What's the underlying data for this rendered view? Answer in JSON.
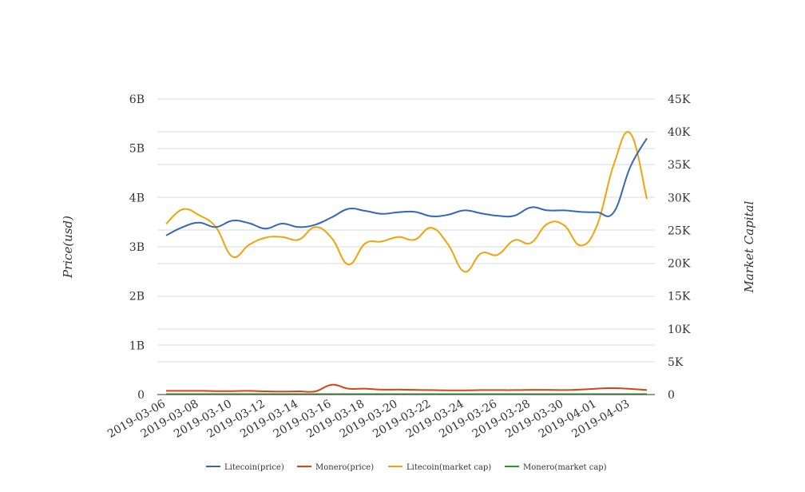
{
  "chart_data": {
    "type": "line",
    "title": "",
    "ylabel": "Price(usd)",
    "y2label": "Market Capital",
    "ylim": [
      0,
      6000000000
    ],
    "y2lim": [
      0,
      45000
    ],
    "yticks": [
      "0",
      "1B",
      "2B",
      "3B",
      "4B",
      "5B",
      "6B"
    ],
    "y2ticks": [
      "0",
      "5K",
      "10K",
      "15K",
      "20K",
      "25K",
      "30K",
      "35K",
      "40K",
      "45K"
    ],
    "grid": true,
    "legend_position": "bottom",
    "x": [
      "2019-03-06",
      "2019-03-07",
      "2019-03-08",
      "2019-03-09",
      "2019-03-10",
      "2019-03-11",
      "2019-03-12",
      "2019-03-13",
      "2019-03-14",
      "2019-03-15",
      "2019-03-16",
      "2019-03-17",
      "2019-03-18",
      "2019-03-19",
      "2019-03-20",
      "2019-03-21",
      "2019-03-22",
      "2019-03-23",
      "2019-03-24",
      "2019-03-25",
      "2019-03-26",
      "2019-03-27",
      "2019-03-28",
      "2019-03-29",
      "2019-03-30",
      "2019-03-31",
      "2019-04-01",
      "2019-04-02",
      "2019-04-03",
      "2019-04-04"
    ],
    "xtick_labels": [
      "2019-03-06",
      "2019-03-08",
      "2019-03-10",
      "2019-03-12",
      "2019-03-14",
      "2019-03-16",
      "2019-03-18",
      "2019-03-20",
      "2019-03-22",
      "2019-03-24",
      "2019-03-26",
      "2019-03-28",
      "2019-03-30",
      "2019-04-01",
      "2019-04-03"
    ],
    "series": [
      {
        "name": "Litecoin(price)",
        "axis": "left",
        "color": "#3566b8",
        "values": [
          3230000000,
          3400000000,
          3490000000,
          3400000000,
          3530000000,
          3480000000,
          3370000000,
          3470000000,
          3400000000,
          3450000000,
          3600000000,
          3770000000,
          3730000000,
          3670000000,
          3700000000,
          3710000000,
          3620000000,
          3650000000,
          3740000000,
          3680000000,
          3630000000,
          3630000000,
          3800000000,
          3740000000,
          3740000000,
          3710000000,
          3700000000,
          3700000000,
          4620000000,
          5200000000
        ]
      },
      {
        "name": "Monero(price)",
        "axis": "left",
        "color": "#d84315",
        "values": [
          75000000,
          75000000,
          75000000,
          70000000,
          70000000,
          75000000,
          65000000,
          60000000,
          65000000,
          65000000,
          200000000,
          120000000,
          120000000,
          100000000,
          100000000,
          95000000,
          90000000,
          85000000,
          85000000,
          90000000,
          90000000,
          90000000,
          95000000,
          95000000,
          90000000,
          100000000,
          120000000,
          130000000,
          115000000,
          90000000
        ]
      },
      {
        "name": "Litecoin(market cap)",
        "axis": "right",
        "color": "#f0a30a",
        "values": [
          26000,
          28200,
          27300,
          25500,
          21000,
          22800,
          23900,
          24000,
          23600,
          25500,
          23800,
          19800,
          23000,
          23300,
          24000,
          23600,
          25400,
          22900,
          18700,
          21500,
          21300,
          23500,
          23100,
          26000,
          25800,
          22700,
          25800,
          35000,
          39800,
          29800
        ]
      },
      {
        "name": "Monero(market cap)",
        "axis": "right",
        "color": "#2e9a2e",
        "values": [
          60,
          60,
          60,
          60,
          60,
          60,
          60,
          60,
          60,
          60,
          60,
          60,
          60,
          60,
          60,
          60,
          60,
          60,
          60,
          60,
          60,
          60,
          60,
          60,
          60,
          60,
          60,
          60,
          60,
          60
        ]
      }
    ]
  }
}
